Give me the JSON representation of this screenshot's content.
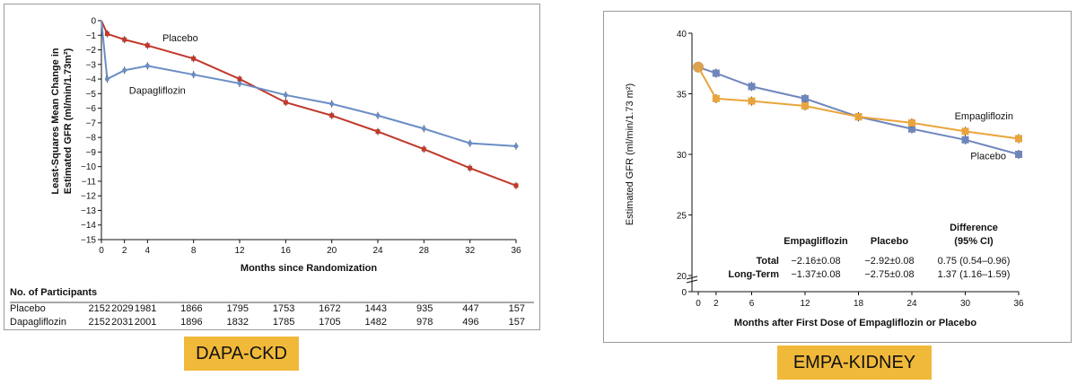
{
  "panels": {
    "dapa": {
      "badge": "DAPA-CKD"
    },
    "empa": {
      "badge": "EMPA-KIDNEY"
    }
  },
  "colors": {
    "dapa_placebo": "#c0392b",
    "dapa_drug": "#6a8dc4",
    "empa_placebo": "#6f86bd",
    "empa_drug": "#e9a53c"
  },
  "chart_data": [
    {
      "type": "line",
      "title": "DAPA-CKD",
      "xlabel": "Months since Randomization",
      "ylabel": "Least-Squares Mean Change in Estimated GFR (ml/min/1.73m²)",
      "xlim": [
        0,
        36
      ],
      "ylim": [
        -15,
        0
      ],
      "xticks": [
        0,
        2,
        4,
        8,
        12,
        16,
        20,
        24,
        28,
        32,
        36
      ],
      "yticks": [
        0,
        -1,
        -2,
        -3,
        -4,
        -5,
        -6,
        -7,
        -8,
        -9,
        -10,
        -11,
        -12,
        -13,
        -14,
        -15
      ],
      "series": [
        {
          "name": "Placebo",
          "x": [
            0,
            0.5,
            2,
            4,
            8,
            12,
            16,
            20,
            24,
            28,
            32,
            36
          ],
          "y": [
            0,
            -0.9,
            -1.3,
            -1.7,
            -2.6,
            -4.0,
            -5.6,
            -6.5,
            -7.6,
            -8.8,
            -10.1,
            -11.3
          ]
        },
        {
          "name": "Dapagliflozin",
          "x": [
            0,
            0.5,
            2,
            4,
            8,
            12,
            16,
            20,
            24,
            28,
            32,
            36
          ],
          "y": [
            0,
            -4.0,
            -3.4,
            -3.1,
            -3.7,
            -4.3,
            -5.1,
            -5.7,
            -6.5,
            -7.4,
            -8.4,
            -8.6
          ]
        }
      ],
      "participants": {
        "header": "No. of Participants",
        "months": [
          0,
          2,
          4,
          8,
          12,
          16,
          20,
          24,
          28,
          32,
          36
        ],
        "rows": [
          {
            "label": "Placebo",
            "counts": [
              "2152",
              "2029",
              "1981",
              "1866",
              "1795",
              "1753",
              "1672",
              "1443",
              "935",
              "447",
              "157"
            ]
          },
          {
            "label": "Dapagliflozin",
            "counts": [
              "2152",
              "2031",
              "2001",
              "1896",
              "1832",
              "1785",
              "1705",
              "1482",
              "978",
              "496",
              "157"
            ]
          }
        ]
      }
    },
    {
      "type": "line",
      "title": "EMPA-KIDNEY",
      "xlabel": "Months after First Dose of Empagliflozin or Placebo",
      "ylabel": "Estimated GFR (ml/min/1.73 m²)",
      "xlim": [
        0,
        36
      ],
      "ylim": [
        20,
        40
      ],
      "xticks": [
        0,
        2,
        6,
        12,
        18,
        24,
        30,
        36
      ],
      "yticks": [
        20,
        25,
        30,
        35,
        40
      ],
      "series": [
        {
          "name": "Placebo",
          "x": [
            0,
            2,
            6,
            12,
            18,
            24,
            30,
            36
          ],
          "y": [
            37.2,
            36.7,
            35.6,
            34.6,
            33.1,
            32.1,
            31.2,
            30.0
          ]
        },
        {
          "name": "Empagliflozin",
          "x": [
            0,
            2,
            6,
            12,
            18,
            24,
            30,
            36
          ],
          "y": [
            37.2,
            34.6,
            34.4,
            34.0,
            33.1,
            32.6,
            31.9,
            31.3
          ]
        }
      ],
      "summary_table": {
        "headers": [
          "Empagliflozin",
          "Placebo",
          "Difference",
          "(95% CI)"
        ],
        "rows": [
          {
            "label": "Total",
            "empagliflozin": "−2.16±0.08",
            "placebo": "−2.92±0.08",
            "difference": "0.75 (0.54–0.96)"
          },
          {
            "label": "Long-Term",
            "empagliflozin": "−1.37±0.08",
            "placebo": "−2.75±0.08",
            "difference": "1.37 (1.16–1.59)"
          }
        ]
      }
    }
  ]
}
